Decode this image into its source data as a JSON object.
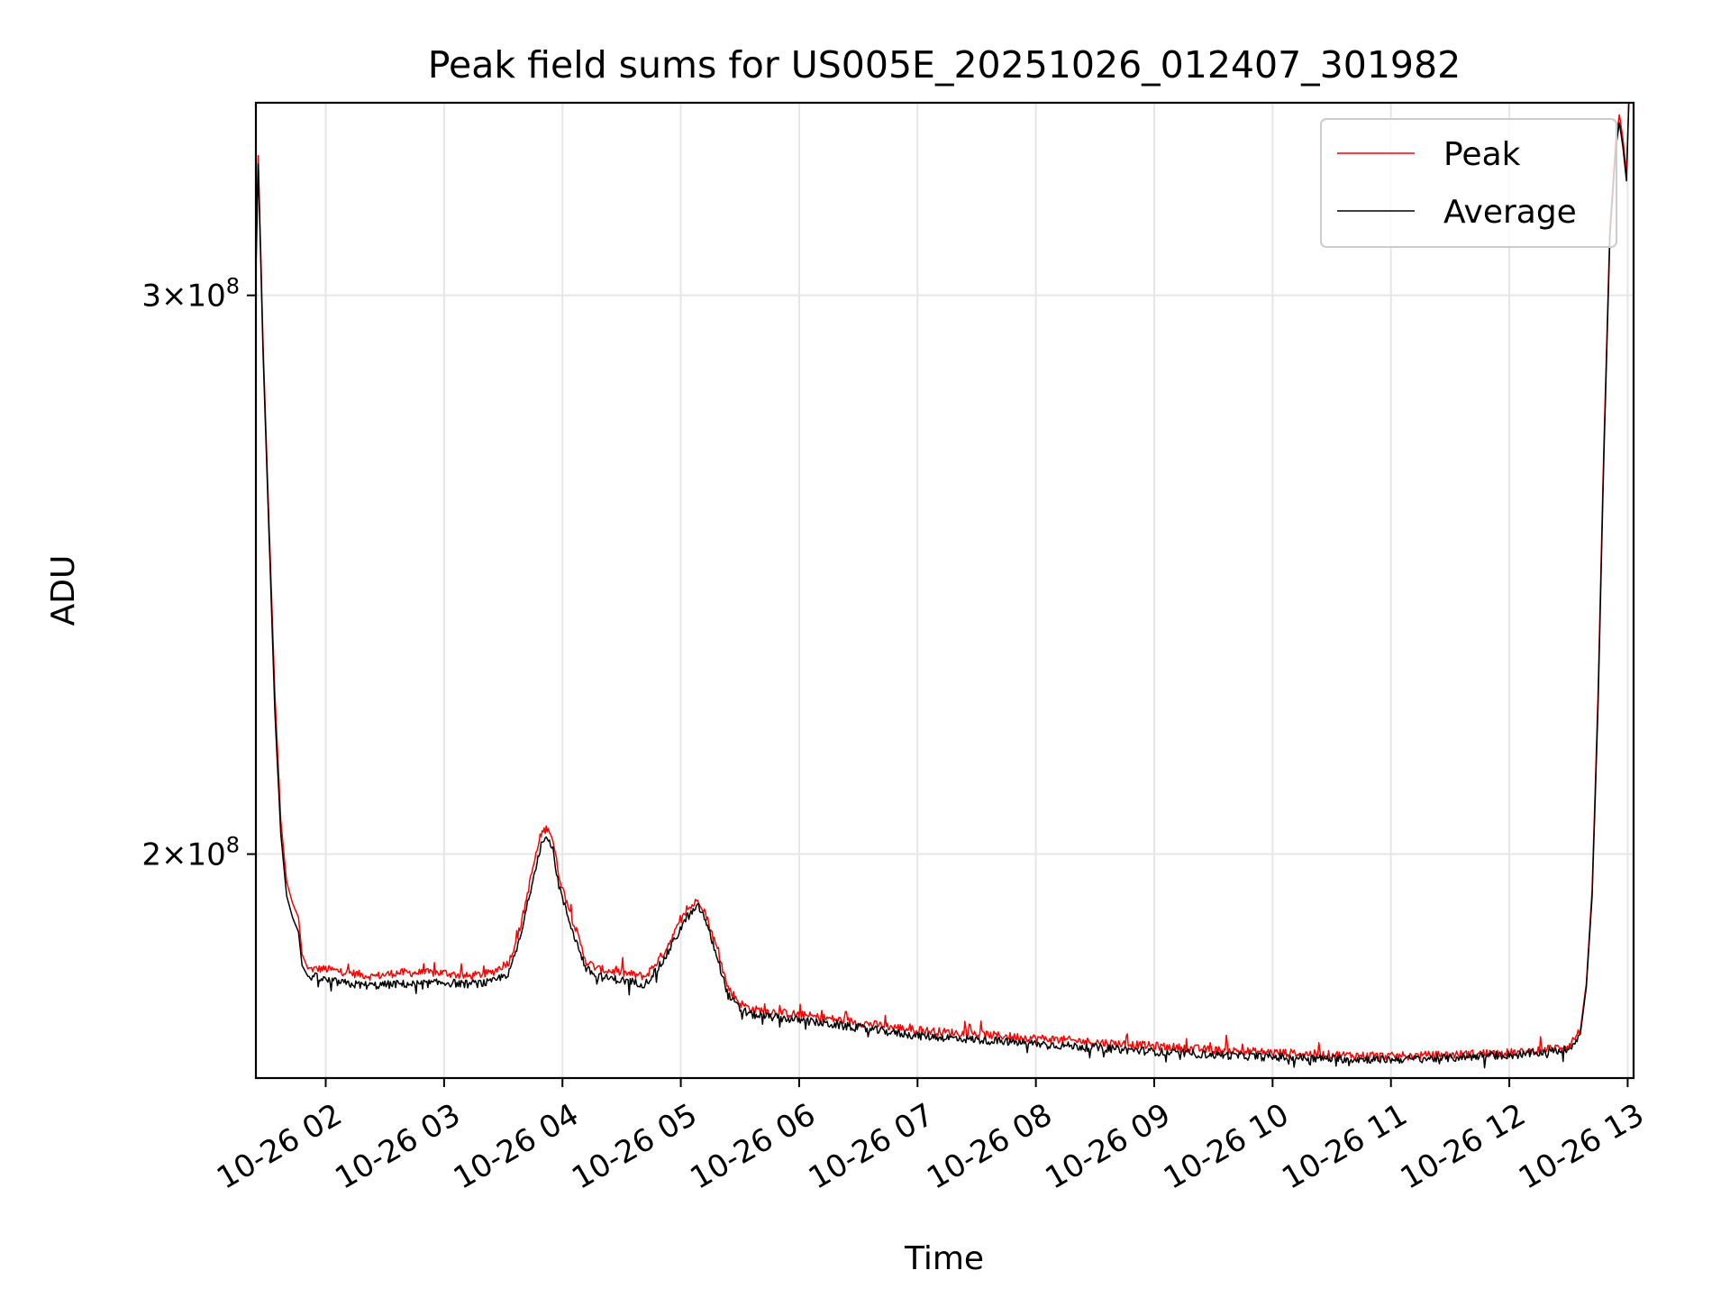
{
  "chart_data": {
    "type": "line",
    "title": "Peak field sums for US005E_20251026_012407_301982",
    "xlabel": "Time",
    "ylabel": "ADU",
    "x_units": "hours since 2025-10-26 00:00",
    "xlim": [
      1.41,
      13.05
    ],
    "ylim": [
      170000000,
      345000000
    ],
    "yscale": "log",
    "grid": true,
    "legend_position": "top-right",
    "x_ticks": [
      {
        "value": 2,
        "label": "10-26 02"
      },
      {
        "value": 3,
        "label": "10-26 03"
      },
      {
        "value": 4,
        "label": "10-26 04"
      },
      {
        "value": 5,
        "label": "10-26 05"
      },
      {
        "value": 6,
        "label": "10-26 06"
      },
      {
        "value": 7,
        "label": "10-26 07"
      },
      {
        "value": 8,
        "label": "10-26 08"
      },
      {
        "value": 9,
        "label": "10-26 09"
      },
      {
        "value": 10,
        "label": "10-26 10"
      },
      {
        "value": 11,
        "label": "10-26 11"
      },
      {
        "value": 12,
        "label": "10-26 12"
      },
      {
        "value": 13,
        "label": "10-26 13"
      }
    ],
    "y_ticks": [
      {
        "value": 200000000,
        "mantissa": "2",
        "exponent": "8"
      },
      {
        "value": 300000000,
        "mantissa": "3",
        "exponent": "8"
      }
    ],
    "series": [
      {
        "name": "Peak",
        "color": "#ff0000",
        "x": [
          1.41,
          1.43,
          1.47,
          1.52,
          1.57,
          1.62,
          1.67,
          1.72,
          1.77,
          1.8,
          1.85,
          1.9,
          2.0,
          2.2,
          2.4,
          2.6,
          2.8,
          3.0,
          3.2,
          3.4,
          3.55,
          3.65,
          3.75,
          3.82,
          3.88,
          3.92,
          3.97,
          4.02,
          4.1,
          4.2,
          4.3,
          4.5,
          4.7,
          4.85,
          4.95,
          5.05,
          5.15,
          5.2,
          5.3,
          5.4,
          5.5,
          5.6,
          6.0,
          6.5,
          7.0,
          7.5,
          8.0,
          8.5,
          9.0,
          9.5,
          10.0,
          10.5,
          11.0,
          11.5,
          11.8,
          12.1,
          12.5,
          12.6,
          12.65,
          12.7,
          12.75,
          12.8,
          12.85,
          12.9,
          12.93,
          12.96,
          12.99,
          13.01,
          13.05
        ],
        "values": [
          310000000,
          332000000,
          290000000,
          255000000,
          225000000,
          205000000,
          196000000,
          193000000,
          191000000,
          186000000,
          184000000,
          184000000,
          184000000,
          183500000,
          183000000,
          183500000,
          183500000,
          183500000,
          183000000,
          183500000,
          185000000,
          190000000,
          198000000,
          203000000,
          204000000,
          202000000,
          197000000,
          194000000,
          190000000,
          185000000,
          184000000,
          183500000,
          183000000,
          186000000,
          189000000,
          192000000,
          193500000,
          192000000,
          187000000,
          181500000,
          179500000,
          178700000,
          178000000,
          177000000,
          176000000,
          175500000,
          175000000,
          174500000,
          174000000,
          173500000,
          173200000,
          172900000,
          172700000,
          172900000,
          173100000,
          173200000,
          174000000,
          176000000,
          182000000,
          195000000,
          225000000,
          270000000,
          315000000,
          336000000,
          342000000,
          336000000,
          328000000,
          345000000,
          345000000
        ]
      },
      {
        "name": "Average",
        "color": "#000000",
        "x": [
          1.41,
          1.43,
          1.47,
          1.52,
          1.57,
          1.62,
          1.67,
          1.72,
          1.77,
          1.8,
          1.85,
          1.9,
          2.0,
          2.2,
          2.4,
          2.6,
          2.8,
          3.0,
          3.2,
          3.4,
          3.55,
          3.65,
          3.75,
          3.82,
          3.88,
          3.92,
          3.97,
          4.02,
          4.1,
          4.2,
          4.3,
          4.5,
          4.7,
          4.85,
          4.95,
          5.05,
          5.15,
          5.2,
          5.3,
          5.4,
          5.5,
          5.6,
          6.0,
          6.5,
          7.0,
          7.5,
          8.0,
          8.5,
          9.0,
          9.5,
          10.0,
          10.5,
          11.0,
          11.5,
          11.8,
          12.1,
          12.5,
          12.6,
          12.65,
          12.7,
          12.75,
          12.8,
          12.85,
          12.9,
          12.93,
          12.96,
          12.99,
          13.01,
          13.05
        ],
        "values": [
          305000000,
          330000000,
          288000000,
          253000000,
          222000000,
          203000000,
          194000000,
          191000000,
          189000000,
          184500000,
          183000000,
          183000000,
          182500000,
          182000000,
          181800000,
          182000000,
          182000000,
          182200000,
          182000000,
          182200000,
          183500000,
          188500000,
          196500000,
          201500000,
          202500000,
          200500000,
          195500000,
          192500000,
          188500000,
          184000000,
          183000000,
          182500000,
          182000000,
          185000000,
          188000000,
          191000000,
          192500000,
          191000000,
          186000000,
          180500000,
          178700000,
          178000000,
          177300000,
          176300000,
          175300000,
          174800000,
          174300000,
          173800000,
          173300000,
          172900000,
          172600000,
          172400000,
          172300000,
          172500000,
          172800000,
          172900000,
          173600000,
          175500000,
          181500000,
          194000000,
          223000000,
          268000000,
          313000000,
          334000000,
          340000000,
          334000000,
          326000000,
          345000000,
          345000000
        ]
      }
    ]
  }
}
